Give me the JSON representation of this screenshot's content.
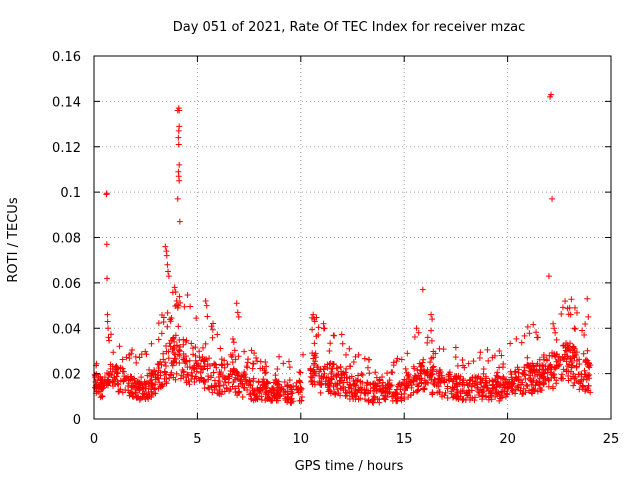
{
  "chart_data": {
    "type": "scatter",
    "title": "Day 051 of 2021, Rate Of TEC Index for receiver mzac",
    "xlabel": "GPS time / hours",
    "ylabel": "ROTI / TECUs",
    "xlim": [
      0,
      25
    ],
    "ylim": [
      0,
      0.16
    ],
    "xticks": [
      "0",
      "5",
      "10",
      "15",
      "20",
      "25"
    ],
    "yticks": [
      "0",
      "0.02",
      "0.04",
      "0.06",
      "0.08",
      "0.1",
      "0.12",
      "0.14",
      "0.16"
    ],
    "grid": true,
    "marker": "+",
    "color": "#ff0000",
    "x_range": [
      0,
      24
    ],
    "baseline_points": [
      [
        0.0,
        0.014
      ],
      [
        0.5,
        0.013
      ],
      [
        1.0,
        0.018
      ],
      [
        1.5,
        0.015
      ],
      [
        2.0,
        0.013
      ],
      [
        2.5,
        0.013
      ],
      [
        3.0,
        0.016
      ],
      [
        3.5,
        0.024
      ],
      [
        4.0,
        0.026
      ],
      [
        4.5,
        0.024
      ],
      [
        5.0,
        0.022
      ],
      [
        5.5,
        0.019
      ],
      [
        6.0,
        0.017
      ],
      [
        6.5,
        0.017
      ],
      [
        7.0,
        0.014
      ],
      [
        7.5,
        0.013
      ],
      [
        8.0,
        0.012
      ],
      [
        8.5,
        0.012
      ],
      [
        9.0,
        0.012
      ],
      [
        9.5,
        0.011
      ],
      [
        10.0,
        0.012
      ],
      [
        10.5,
        0.021
      ],
      [
        11.0,
        0.017
      ],
      [
        11.5,
        0.017
      ],
      [
        12.0,
        0.016
      ],
      [
        12.5,
        0.013
      ],
      [
        13.0,
        0.012
      ],
      [
        13.5,
        0.011
      ],
      [
        14.0,
        0.011
      ],
      [
        14.5,
        0.011
      ],
      [
        15.0,
        0.013
      ],
      [
        15.5,
        0.018
      ],
      [
        16.0,
        0.019
      ],
      [
        16.5,
        0.016
      ],
      [
        17.0,
        0.014
      ],
      [
        17.5,
        0.014
      ],
      [
        18.0,
        0.012
      ],
      [
        18.5,
        0.013
      ],
      [
        19.0,
        0.013
      ],
      [
        19.5,
        0.012
      ],
      [
        20.0,
        0.014
      ],
      [
        20.5,
        0.016
      ],
      [
        21.0,
        0.017
      ],
      [
        21.5,
        0.018
      ],
      [
        22.0,
        0.02
      ],
      [
        22.5,
        0.022
      ],
      [
        23.0,
        0.024
      ],
      [
        23.5,
        0.02
      ],
      [
        24.0,
        0.018
      ]
    ],
    "outliers": [
      [
        0.6,
        0.099
      ],
      [
        0.62,
        0.0995
      ],
      [
        0.62,
        0.077
      ],
      [
        0.63,
        0.062
      ],
      [
        0.65,
        0.046
      ],
      [
        0.66,
        0.043
      ],
      [
        0.68,
        0.04
      ],
      [
        0.7,
        0.036
      ],
      [
        3.45,
        0.076
      ],
      [
        3.5,
        0.074
      ],
      [
        3.52,
        0.072
      ],
      [
        3.55,
        0.068
      ],
      [
        3.58,
        0.065
      ],
      [
        3.62,
        0.063
      ],
      [
        3.9,
        0.058
      ],
      [
        3.95,
        0.056
      ],
      [
        4.0,
        0.052
      ],
      [
        4.05,
        0.049
      ],
      [
        4.05,
        0.136
      ],
      [
        4.1,
        0.137
      ],
      [
        4.12,
        0.136
      ],
      [
        4.12,
        0.129
      ],
      [
        4.1,
        0.127
      ],
      [
        4.08,
        0.124
      ],
      [
        4.1,
        0.121
      ],
      [
        4.12,
        0.112
      ],
      [
        4.08,
        0.109
      ],
      [
        4.1,
        0.107
      ],
      [
        4.12,
        0.105
      ],
      [
        4.05,
        0.097
      ],
      [
        4.15,
        0.087
      ],
      [
        5.4,
        0.052
      ],
      [
        5.45,
        0.05
      ],
      [
        6.9,
        0.051
      ],
      [
        6.95,
        0.047
      ],
      [
        7.0,
        0.045
      ],
      [
        10.6,
        0.046
      ],
      [
        10.65,
        0.044
      ],
      [
        11.1,
        0.042
      ],
      [
        11.15,
        0.04
      ],
      [
        15.6,
        0.04
      ],
      [
        15.7,
        0.038
      ],
      [
        15.9,
        0.057
      ],
      [
        16.3,
        0.046
      ],
      [
        16.35,
        0.044
      ],
      [
        19.6,
        0.03
      ],
      [
        19.7,
        0.028
      ],
      [
        22.0,
        0.063
      ],
      [
        22.05,
        0.142
      ],
      [
        22.1,
        0.143
      ],
      [
        22.15,
        0.097
      ],
      [
        22.2,
        0.042
      ],
      [
        22.25,
        0.04
      ],
      [
        22.3,
        0.038
      ],
      [
        23.0,
        0.049
      ],
      [
        23.05,
        0.046
      ],
      [
        23.85,
        0.053
      ],
      [
        23.9,
        0.045
      ],
      [
        23.6,
        0.039
      ],
      [
        23.7,
        0.037
      ]
    ],
    "dense_points_per_hour": 70,
    "random_seed": 51
  }
}
